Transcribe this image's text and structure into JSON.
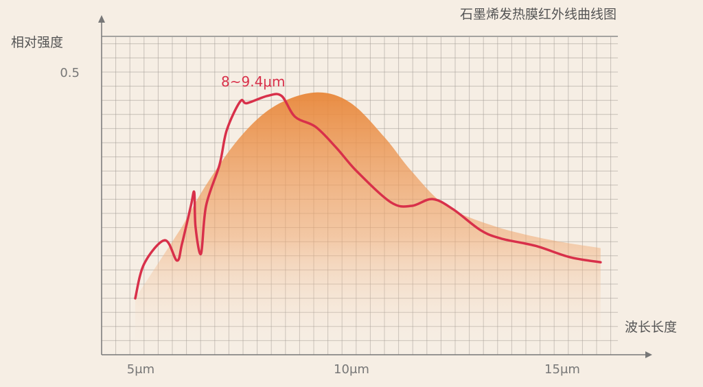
{
  "chart_data": {
    "type": "area",
    "title": "石墨烯发热膜红外线曲线图",
    "xlabel": "波长长度",
    "ylabel": "相对强度",
    "xlim": [
      4.2,
      16.5
    ],
    "ylim": [
      0,
      0.57
    ],
    "x_ticks": [
      {
        "value": 5,
        "label": "5μm"
      },
      {
        "value": 10,
        "label": "10μm"
      },
      {
        "value": 15,
        "label": "15μm"
      }
    ],
    "y_ticks": [
      {
        "value": 0.5,
        "label": "0.5"
      }
    ],
    "grid": true,
    "annotation": {
      "text": "8~9.4μm",
      "x": 8.0,
      "y": 0.5
    },
    "colors": {
      "line": "#d8304a",
      "area": "#e8873a",
      "grid": "#9a9590",
      "background": "#f6eee4"
    },
    "series": [
      {
        "type": "line",
        "x": [
          5.0,
          5.21,
          5.7,
          5.99,
          6.11,
          6.32,
          6.4,
          6.43,
          6.56,
          6.68,
          7.0,
          7.17,
          7.49,
          7.65,
          8.14,
          8.47,
          8.79,
          9.28,
          9.77,
          10.26,
          11.07,
          11.56,
          12.05,
          12.54,
          13.19,
          13.68,
          14.5,
          15.31,
          16.04
        ],
        "y": [
          0.1,
          0.161,
          0.203,
          0.167,
          0.197,
          0.264,
          0.288,
          0.227,
          0.179,
          0.264,
          0.337,
          0.398,
          0.449,
          0.446,
          0.459,
          0.459,
          0.422,
          0.404,
          0.367,
          0.325,
          0.27,
          0.264,
          0.276,
          0.258,
          0.221,
          0.206,
          0.193,
          0.173,
          0.164
        ]
      },
      {
        "type": "area",
        "x": [
          6.11,
          6.68,
          7.49,
          8.31,
          9.28,
          10.1,
          10.91,
          11.56,
          12.38,
          13.52,
          14.82,
          16.04
        ],
        "y": [
          0.227,
          0.301,
          0.386,
          0.441,
          0.465,
          0.447,
          0.386,
          0.325,
          0.264,
          0.228,
          0.204,
          0.189
        ]
      }
    ]
  }
}
